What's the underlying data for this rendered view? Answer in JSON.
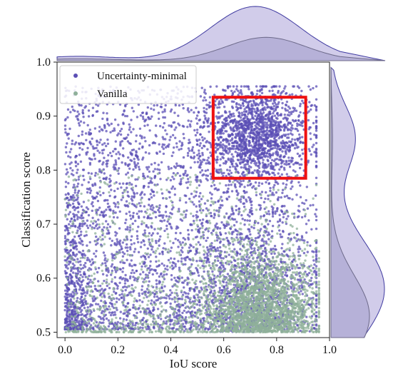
{
  "chart_data": {
    "type": "scatter",
    "xlabel": "IoU score",
    "ylabel": "Classification score",
    "xlim": [
      -0.03,
      1.0
    ],
    "ylim": [
      0.49,
      1.0
    ],
    "xticks": [
      "0.0",
      "0.2",
      "0.4",
      "0.6",
      "0.8",
      "1.0"
    ],
    "yticks": [
      "0.5",
      "0.6",
      "0.7",
      "0.8",
      "0.9",
      "1.0"
    ],
    "grid": false,
    "legend": "top-left",
    "marginals": {
      "top": "kde",
      "right": "kde"
    },
    "series": [
      {
        "name": "Uncertainty-minimal",
        "color": "#5b4fb5",
        "fill": "#c9c3e6",
        "density": "concentrated at high classification score (0.8-0.95) with IoU 0.55-0.9, plus broad spread across all IoU values; approx 7000 points",
        "kde_peak_x": 0.72,
        "kde_peak_y": 0.58
      },
      {
        "name": "Vanilla",
        "color": "#8fb09a",
        "fill": "#b3aed6",
        "density": "concentrated at IoU 0.6-0.9 and classification score 0.5-0.65; approx 5000 points",
        "kde_peak_x": 0.76,
        "kde_peak_y": 0.53
      }
    ],
    "annotation": {
      "type": "rectangle",
      "color": "#ee1111",
      "x_range": [
        0.56,
        0.91
      ],
      "y_range": [
        0.785,
        0.935
      ]
    }
  }
}
